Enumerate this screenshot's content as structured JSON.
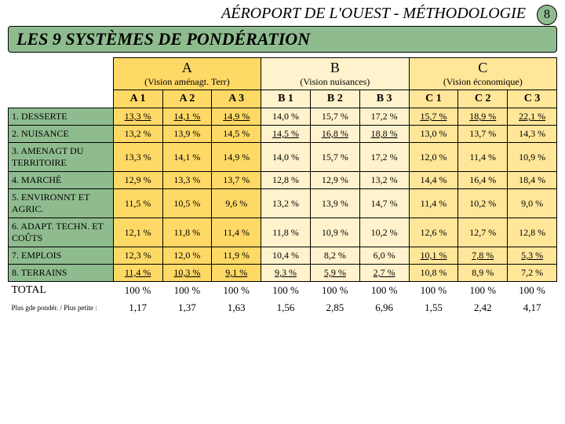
{
  "header": "AÉROPORT DE L'OUEST - MÉTHODOLOGIE",
  "page_number": "8",
  "subtitle": "LES 9 SYSTÈMES DE PONDÉRATION",
  "colors": {
    "bg_header": "#8fbc8f",
    "bg_a": "#ffd966",
    "bg_b": "#fff2cc",
    "bg_c": "#ffe699"
  },
  "groups": {
    "A": {
      "label": "A",
      "sub": "(Vision aménagt. Terr)"
    },
    "B": {
      "label": "B",
      "sub": "(Vision nuisances)"
    },
    "C": {
      "label": "C",
      "sub": "(Vision économique)"
    }
  },
  "subcols": [
    "A 1",
    "A 2",
    "A 3",
    "B 1",
    "B 2",
    "B 3",
    "C 1",
    "C 2",
    "C 3"
  ],
  "rows": [
    {
      "label": "1. DESSERTE",
      "cells": [
        {
          "v": "13,3 %",
          "u": true
        },
        {
          "v": "14,1 %",
          "u": true
        },
        {
          "v": "14,9 %",
          "u": true
        },
        {
          "v": "14,0 %"
        },
        {
          "v": "15,7 %"
        },
        {
          "v": "17,2 %"
        },
        {
          "v": "15,7 %",
          "u": true
        },
        {
          "v": "18,9 %",
          "u": true
        },
        {
          "v": "22,1 %",
          "u": true
        }
      ]
    },
    {
      "label": "2. NUISANCE",
      "cells": [
        {
          "v": "13,2 %"
        },
        {
          "v": "13,9 %"
        },
        {
          "v": "14,5 %"
        },
        {
          "v": "14,5 %",
          "u": true
        },
        {
          "v": "16,8 %",
          "u": true
        },
        {
          "v": "18,8 %",
          "u": true
        },
        {
          "v": "13,0 %"
        },
        {
          "v": "13,7 %"
        },
        {
          "v": "14,3 %"
        }
      ]
    },
    {
      "label": "3. AMENAGT DU TERRITOIRE",
      "cells": [
        {
          "v": "13,3 %"
        },
        {
          "v": "14,1 %"
        },
        {
          "v": "14,9 %"
        },
        {
          "v": "14,0 %"
        },
        {
          "v": "15,7 %"
        },
        {
          "v": "17,2 %"
        },
        {
          "v": "12,0 %"
        },
        {
          "v": "11,4 %"
        },
        {
          "v": "10,9 %"
        }
      ]
    },
    {
      "label": "4. MARCHÉ",
      "cells": [
        {
          "v": "12,9 %"
        },
        {
          "v": "13,3 %"
        },
        {
          "v": "13,7 %"
        },
        {
          "v": "12,8 %"
        },
        {
          "v": "12,9 %"
        },
        {
          "v": "13,2 %"
        },
        {
          "v": "14,4 %"
        },
        {
          "v": "16,4 %"
        },
        {
          "v": "18,4 %"
        }
      ]
    },
    {
      "label": "5. ENVIRONNT ET AGRIC.",
      "cells": [
        {
          "v": "11,5 %"
        },
        {
          "v": "10,5 %"
        },
        {
          "v": "9,6 %"
        },
        {
          "v": "13,2 %"
        },
        {
          "v": "13,9 %"
        },
        {
          "v": "14,7 %"
        },
        {
          "v": "11,4 %"
        },
        {
          "v": "10,2 %"
        },
        {
          "v": "9,0 %"
        }
      ]
    },
    {
      "label": "6. ADAPT. TECHN. ET COÛTS",
      "cells": [
        {
          "v": "12,1 %"
        },
        {
          "v": "11,8 %"
        },
        {
          "v": "11,4 %"
        },
        {
          "v": "11,8 %"
        },
        {
          "v": "10,9 %"
        },
        {
          "v": "10,2 %"
        },
        {
          "v": "12,6 %"
        },
        {
          "v": "12,7 %"
        },
        {
          "v": "12,8 %"
        }
      ]
    },
    {
      "label": "7. EMPLOIS",
      "cells": [
        {
          "v": "12,3 %"
        },
        {
          "v": "12,0 %"
        },
        {
          "v": "11,9 %"
        },
        {
          "v": "10,4 %"
        },
        {
          "v": "8,2 %"
        },
        {
          "v": "6,0 %"
        },
        {
          "v": "10,1 %",
          "u": true
        },
        {
          "v": "7,8 %",
          "u": true
        },
        {
          "v": "5,3 %",
          "u": true
        }
      ]
    },
    {
      "label": "8. TERRAINS",
      "cells": [
        {
          "v": "11,4 %",
          "u": true
        },
        {
          "v": "10,3 %",
          "u": true
        },
        {
          "v": "9,1 %",
          "u": true
        },
        {
          "v": "9,3 %",
          "u": true
        },
        {
          "v": "5,9 %",
          "u": true
        },
        {
          "v": "2,7 %",
          "u": true
        },
        {
          "v": "10,8 %"
        },
        {
          "v": "8,9 %"
        },
        {
          "v": "7,2 %"
        }
      ]
    }
  ],
  "total_label": "TOTAL",
  "total_cells": [
    "100 %",
    "100 %",
    "100 %",
    "100 %",
    "100 %",
    "100 %",
    "100 %",
    "100 %",
    "100 %"
  ],
  "ratio_label": "Plus gde pondér. / Plus petite :",
  "ratio_cells": [
    "1,17",
    "1,37",
    "1,63",
    "1,56",
    "2,85",
    "6,96",
    "1,55",
    "2,42",
    "4,17"
  ]
}
